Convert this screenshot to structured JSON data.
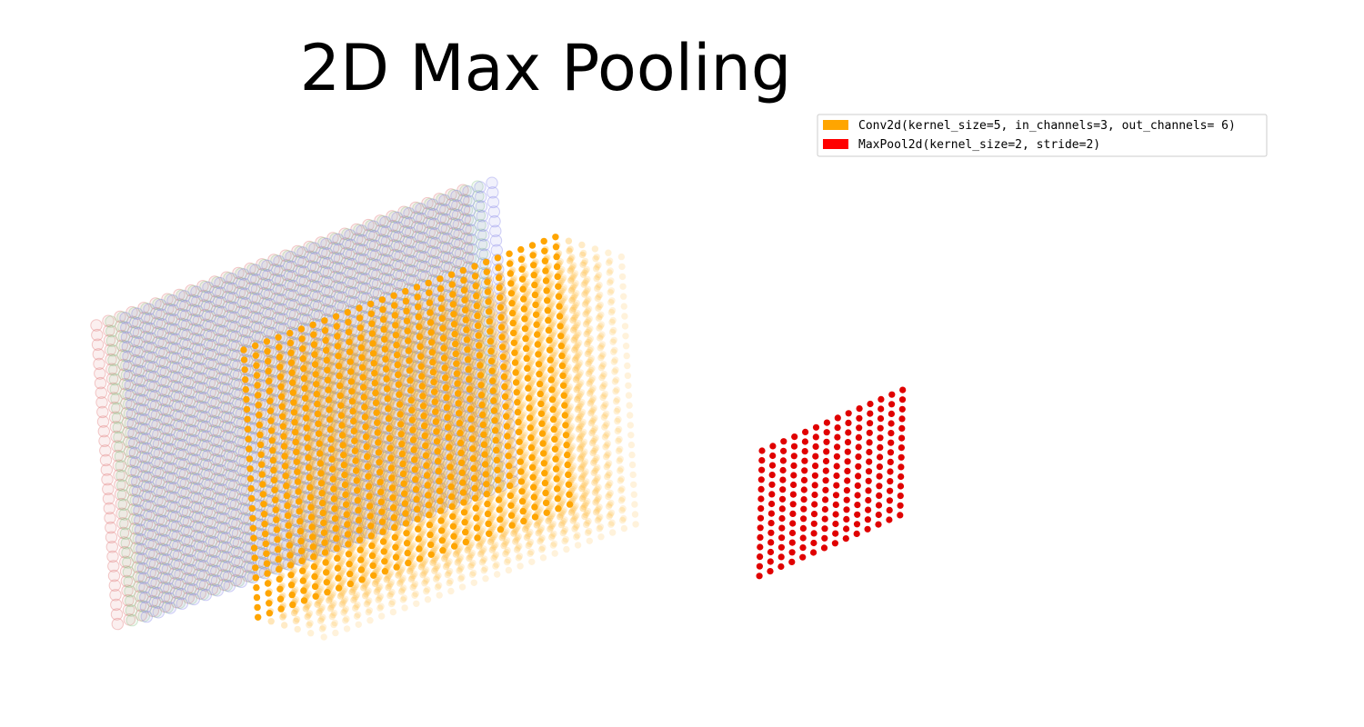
{
  "title": "2D Max Pooling",
  "legend": [
    {
      "label": "Conv2d(kernel_size=5, in_channels=3, out_channels= 6)",
      "color": "#ffa500"
    },
    {
      "label": "MaxPool2d(kernel_size=2, stride=2)",
      "color": "#ff0000"
    }
  ],
  "layers": {
    "input": {
      "rows": 32,
      "cols": 32,
      "channel_colors": [
        "#e07a7a",
        "#8fc98f",
        "#8a8aea"
      ]
    },
    "conv_output": {
      "rows": 28,
      "cols": 28,
      "channels": 6,
      "color": "#ffa500"
    },
    "pool_output": {
      "rows": 14,
      "cols": 14,
      "color": "#e00000"
    }
  }
}
